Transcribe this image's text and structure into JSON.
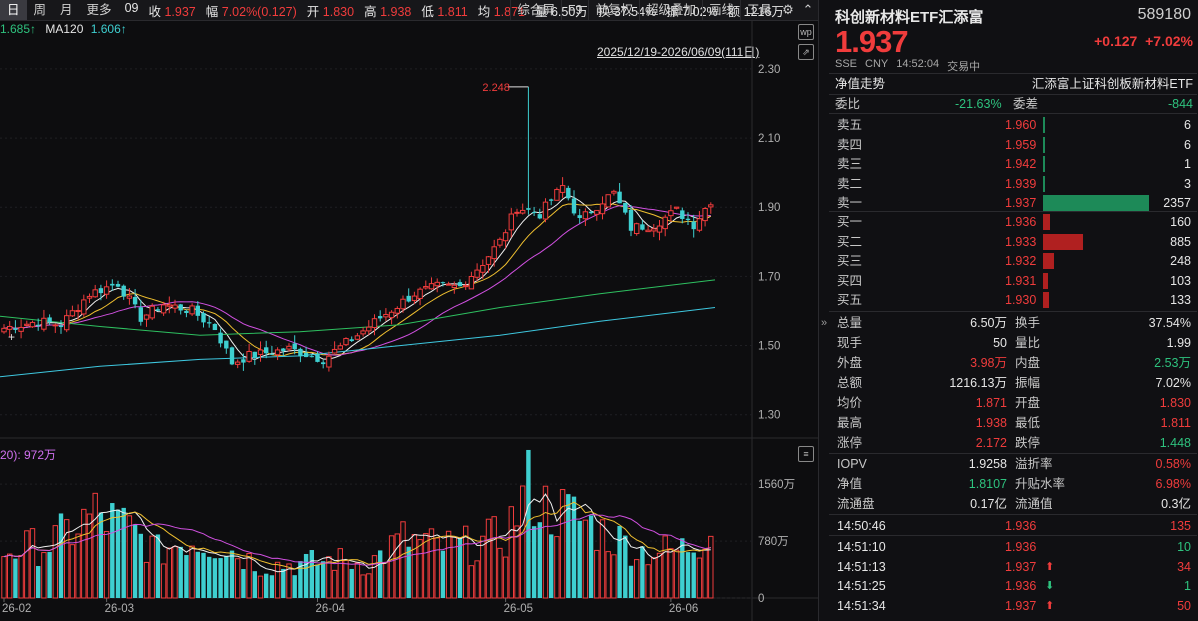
{
  "toolbar": {
    "tabs": [
      "日",
      "周",
      "月",
      "更多"
    ],
    "info": [
      {
        "label": "09",
        "value": "",
        "color": "white"
      },
      {
        "label": "收",
        "value": "1.937",
        "color": "red"
      },
      {
        "label": "幅",
        "value": "7.02%(0.127)",
        "color": "red"
      },
      {
        "label": "开",
        "value": "1.830",
        "color": "red"
      },
      {
        "label": "高",
        "value": "1.938",
        "color": "red"
      },
      {
        "label": "低",
        "value": "1.811",
        "color": "red"
      },
      {
        "label": "均",
        "value": "1.871",
        "color": "red"
      },
      {
        "label": "量",
        "value": "6.50万",
        "color": "white"
      },
      {
        "label": "换",
        "value": "37.54%",
        "color": "white"
      },
      {
        "label": "振",
        "value": "7.02%",
        "color": "white"
      },
      {
        "label": "额",
        "value": "1216万",
        "color": "white"
      }
    ],
    "buttons": [
      "综合屏",
      "F9",
      "前复权",
      "超级叠加",
      "画线",
      "工具"
    ]
  },
  "ma_legend": {
    "ma_val": "1.685↑",
    "ma120_label": "MA120",
    "ma120_val": "1.606↑"
  },
  "date_range": "2025/12/19-2026/06/09(111日)",
  "peak_label": "2.248",
  "vol_legend": "20): 972万",
  "chart_data": {
    "type": "candlestick",
    "price_axis": {
      "ticks": [
        "2.30",
        "2.10",
        "1.90",
        "1.70",
        "1.50",
        "1.30"
      ],
      "ylim": [
        1.25,
        2.32
      ]
    },
    "volume_axis": {
      "ticks": [
        "1560万",
        "780万",
        "0"
      ],
      "ylim": [
        0,
        1850
      ]
    },
    "x_labels": [
      "26-02",
      "26-03",
      "26-04",
      "26-05",
      "26-06"
    ],
    "anchors": [
      [
        0,
        1.55
      ],
      [
        6,
        1.57
      ],
      [
        10,
        1.56
      ],
      [
        15,
        1.65
      ],
      [
        20,
        1.68
      ],
      [
        24,
        1.58
      ],
      [
        28,
        1.62
      ],
      [
        33,
        1.6
      ],
      [
        37,
        1.55
      ],
      [
        40,
        1.45
      ],
      [
        43,
        1.47
      ],
      [
        50,
        1.49
      ],
      [
        56,
        1.46
      ],
      [
        62,
        1.53
      ],
      [
        66,
        1.58
      ],
      [
        72,
        1.65
      ],
      [
        76,
        1.67
      ],
      [
        80,
        1.67
      ],
      [
        84,
        1.74
      ],
      [
        87,
        1.8
      ],
      [
        90,
        1.9
      ],
      [
        94,
        1.88
      ],
      [
        98,
        1.96
      ],
      [
        101,
        1.86
      ],
      [
        105,
        1.92
      ],
      [
        107,
        1.94
      ],
      [
        110,
        1.84
      ],
      [
        114,
        1.85
      ],
      [
        118,
        1.89
      ],
      [
        121,
        1.85
      ],
      [
        124,
        1.92
      ]
    ],
    "volume_anchors": [
      [
        0,
        720
      ],
      [
        8,
        820
      ],
      [
        16,
        1280
      ],
      [
        22,
        1050
      ],
      [
        27,
        700
      ],
      [
        32,
        900
      ],
      [
        38,
        820
      ],
      [
        45,
        500
      ],
      [
        52,
        520
      ],
      [
        58,
        580
      ],
      [
        64,
        520
      ],
      [
        70,
        900
      ],
      [
        76,
        780
      ],
      [
        82,
        800
      ],
      [
        88,
        950
      ],
      [
        92,
        1700
      ],
      [
        95,
        1380
      ],
      [
        100,
        1250
      ],
      [
        106,
        960
      ],
      [
        112,
        720
      ],
      [
        118,
        720
      ],
      [
        122,
        860
      ],
      [
        124,
        1250
      ]
    ],
    "ma_colors": {
      "ma5": "#f0f0f0",
      "ma10": "#f0c030",
      "ma20": "#d050e0",
      "ma60": "#2ec060",
      "ma120": "#3ec8e0"
    },
    "ma60": [
      [
        0,
        1.585
      ],
      [
        100,
        1.555
      ],
      [
        200,
        1.53
      ],
      [
        300,
        1.54
      ],
      [
        400,
        1.56
      ],
      [
        500,
        1.61
      ],
      [
        600,
        1.65
      ],
      [
        715,
        1.69
      ]
    ],
    "ma120": [
      [
        0,
        1.41
      ],
      [
        100,
        1.44
      ],
      [
        200,
        1.46
      ],
      [
        300,
        1.47
      ],
      [
        400,
        1.5
      ],
      [
        500,
        1.53
      ],
      [
        600,
        1.57
      ],
      [
        715,
        1.61
      ]
    ]
  },
  "panel": {
    "title": "科创新材料ETF汇添富",
    "code": "589180",
    "price": "1.937",
    "change": "+0.127",
    "change_pct": "+7.02%",
    "meta": [
      "SSE",
      "CNY",
      "14:52:04",
      "交易中"
    ],
    "nav_label": "净值走势",
    "index_name": "汇添富上证科创板新材料ETF",
    "weibi_label": "委比",
    "weibi": "-21.63%",
    "weicha_label": "委差",
    "weicha": "-844",
    "asks": [
      {
        "label": "卖五",
        "price": "1.960",
        "qty": "6"
      },
      {
        "label": "卖四",
        "price": "1.959",
        "qty": "6"
      },
      {
        "label": "卖三",
        "price": "1.942",
        "qty": "1"
      },
      {
        "label": "卖二",
        "price": "1.939",
        "qty": "3"
      },
      {
        "label": "卖一",
        "price": "1.937",
        "qty": "2357"
      }
    ],
    "bids": [
      {
        "label": "买一",
        "price": "1.936",
        "qty": "160"
      },
      {
        "label": "买二",
        "price": "1.933",
        "qty": "885"
      },
      {
        "label": "买三",
        "price": "1.932",
        "qty": "248"
      },
      {
        "label": "买四",
        "price": "1.931",
        "qty": "103"
      },
      {
        "label": "买五",
        "price": "1.930",
        "qty": "133"
      }
    ],
    "stats": [
      [
        {
          "l": "总量",
          "v": "6.50万",
          "c": "white"
        },
        {
          "l": "换手",
          "v": "37.54%",
          "c": "white"
        }
      ],
      [
        {
          "l": "现手",
          "v": "50",
          "c": "white"
        },
        {
          "l": "量比",
          "v": "1.99",
          "c": "white"
        }
      ],
      [
        {
          "l": "外盘",
          "v": "3.98万",
          "c": "red"
        },
        {
          "l": "内盘",
          "v": "2.53万",
          "c": "green"
        }
      ],
      [
        {
          "l": "总额",
          "v": "1216.13万",
          "c": "white"
        },
        {
          "l": "振幅",
          "v": "7.02%",
          "c": "white"
        }
      ],
      [
        {
          "l": "均价",
          "v": "1.871",
          "c": "red"
        },
        {
          "l": "开盘",
          "v": "1.830",
          "c": "red"
        }
      ],
      [
        {
          "l": "最高",
          "v": "1.938",
          "c": "red"
        },
        {
          "l": "最低",
          "v": "1.811",
          "c": "red"
        }
      ],
      [
        {
          "l": "涨停",
          "v": "2.172",
          "c": "red"
        },
        {
          "l": "跌停",
          "v": "1.448",
          "c": "green"
        }
      ]
    ],
    "fund": [
      [
        {
          "l": "IOPV",
          "v": "1.9258",
          "c": "white"
        },
        {
          "l": "溢折率",
          "v": "0.58%",
          "c": "red"
        }
      ],
      [
        {
          "l": "净值",
          "v": "1.8107",
          "c": "green"
        },
        {
          "l": "升贴水率",
          "v": "6.98%",
          "c": "red"
        }
      ],
      [
        {
          "l": "流通盘",
          "v": "0.17亿",
          "c": "white"
        },
        {
          "l": "流通值",
          "v": "0.3亿",
          "c": "white"
        }
      ]
    ],
    "ticks": [
      {
        "time": "14:50:46",
        "price": "1.936",
        "vol": "135",
        "dir": "",
        "vc": "red"
      },
      {
        "time": "14:51:10",
        "price": "1.936",
        "vol": "10",
        "dir": "",
        "vc": "green"
      },
      {
        "time": "14:51:13",
        "price": "1.937",
        "vol": "34",
        "dir": "up",
        "vc": "red"
      },
      {
        "time": "14:51:25",
        "price": "1.936",
        "vol": "1",
        "dir": "down",
        "vc": "green"
      },
      {
        "time": "14:51:34",
        "price": "1.937",
        "vol": "50",
        "dir": "up",
        "vc": "red"
      }
    ]
  }
}
